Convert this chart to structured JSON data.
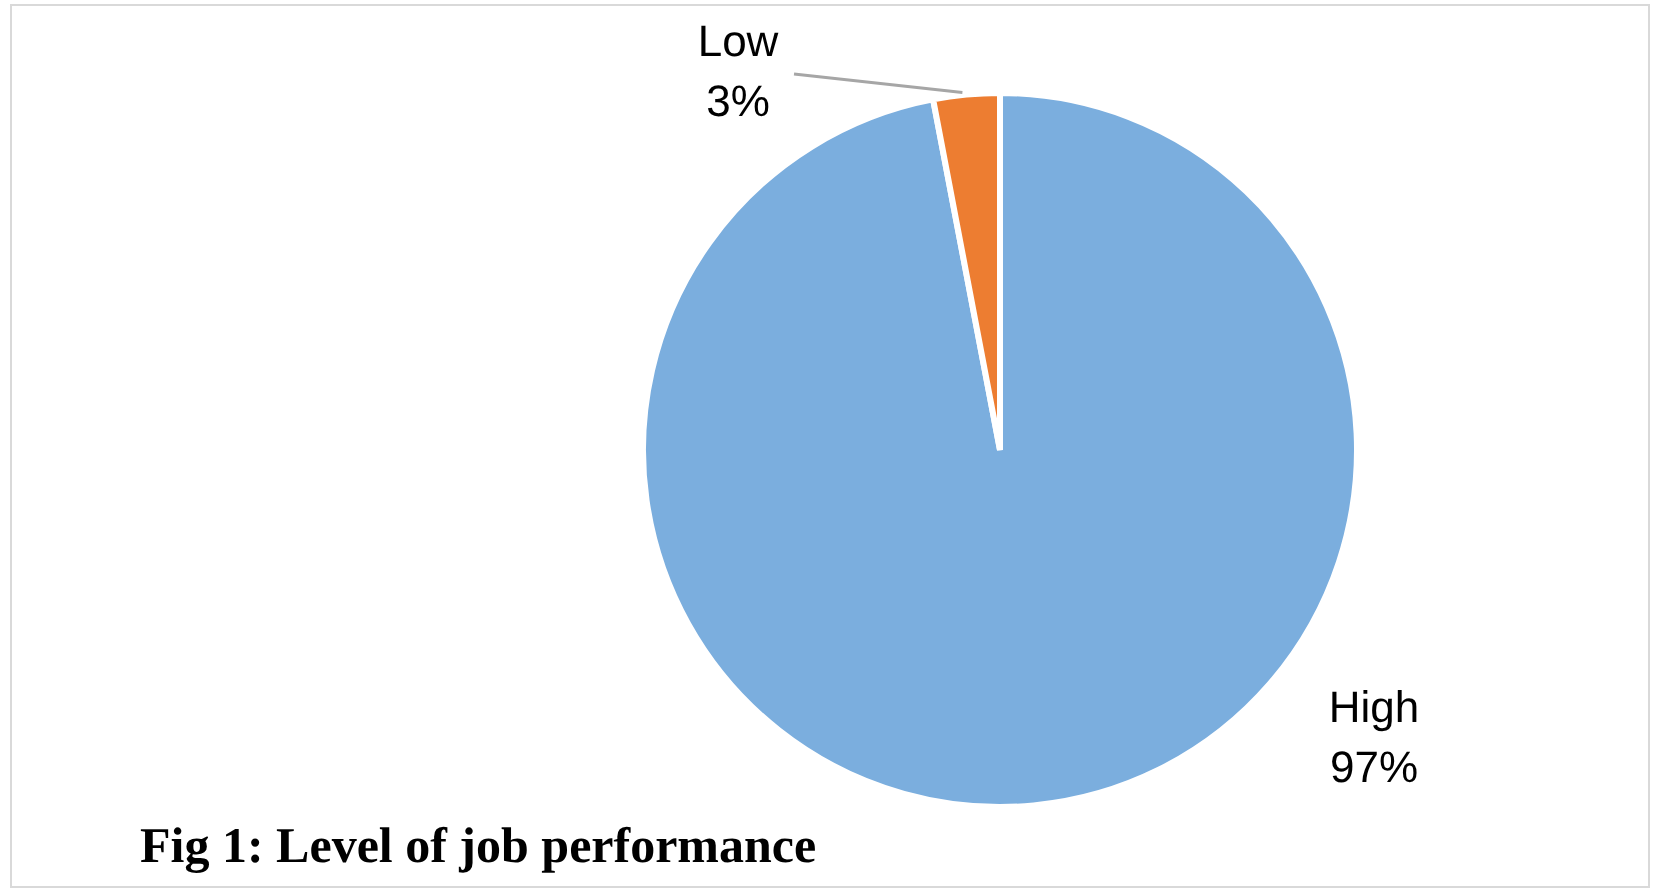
{
  "chart_data": {
    "type": "pie",
    "categories": [
      "High",
      "Low"
    ],
    "values": [
      97,
      3
    ],
    "colors": [
      "#7baede",
      "#ed7d31"
    ],
    "value_labels": [
      "97%",
      "3%"
    ],
    "annotations": [
      "Fig 1: Level of job performance"
    ]
  }
}
